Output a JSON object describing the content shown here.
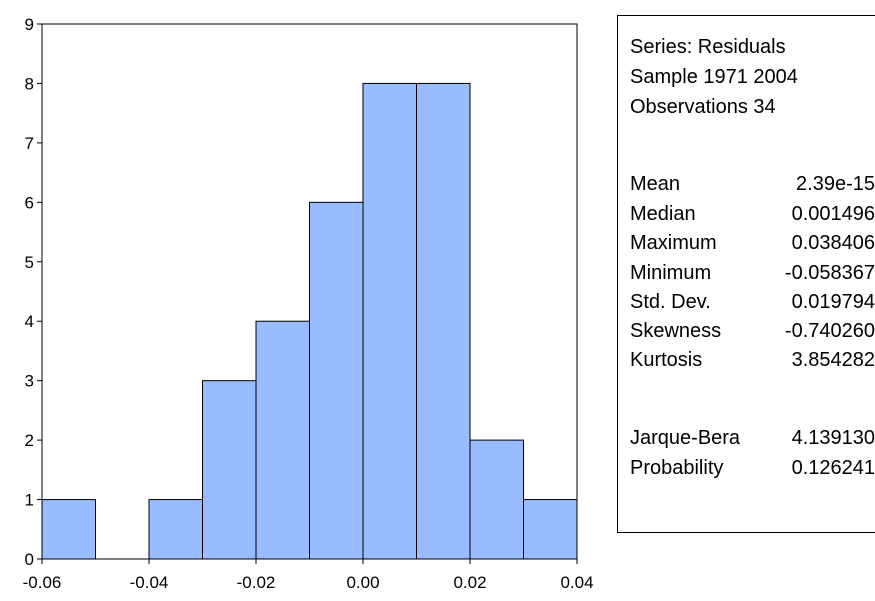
{
  "chart_data": {
    "type": "bar",
    "bins": [
      {
        "from": -0.06,
        "to": -0.05,
        "count": 1
      },
      {
        "from": -0.05,
        "to": -0.04,
        "count": 0
      },
      {
        "from": -0.04,
        "to": -0.03,
        "count": 1
      },
      {
        "from": -0.03,
        "to": -0.02,
        "count": 3
      },
      {
        "from": -0.02,
        "to": -0.01,
        "count": 4
      },
      {
        "from": -0.01,
        "to": 0.0,
        "count": 6
      },
      {
        "from": 0.0,
        "to": 0.01,
        "count": 8
      },
      {
        "from": 0.01,
        "to": 0.02,
        "count": 8
      },
      {
        "from": 0.02,
        "to": 0.03,
        "count": 2
      },
      {
        "from": 0.03,
        "to": 0.04,
        "count": 1
      }
    ],
    "xlim": [
      -0.06,
      0.04
    ],
    "ylim": [
      0,
      9
    ],
    "x_ticks": [
      "-0.06",
      "-0.04",
      "-0.02",
      "0.00",
      "0.02",
      "0.04"
    ],
    "x_tick_values": [
      -0.06,
      -0.04,
      -0.02,
      0.0,
      0.02,
      0.04
    ],
    "y_ticks": [
      0,
      1,
      2,
      3,
      4,
      5,
      6,
      7,
      8,
      9
    ],
    "bar_color": "#99bbff",
    "grid": false
  },
  "stats_box": {
    "series": "Series: Residuals",
    "sample": "Sample 1971 2004",
    "observations": "Observations 34",
    "rows": [
      {
        "label": "Mean",
        "value": "2.39e-15"
      },
      {
        "label": "Median",
        "value": "0.001496"
      },
      {
        "label": "Maximum",
        "value": "0.038406"
      },
      {
        "label": "Minimum",
        "value": "-0.058367"
      },
      {
        "label": "Std. Dev.",
        "value": "0.019794"
      },
      {
        "label": "Skewness",
        "value": "-0.740260"
      },
      {
        "label": "Kurtosis",
        "value": "3.854282"
      }
    ],
    "tests": [
      {
        "label": "Jarque-Bera",
        "value": "4.139130"
      },
      {
        "label": "Probability",
        "value": "0.126241"
      }
    ]
  }
}
